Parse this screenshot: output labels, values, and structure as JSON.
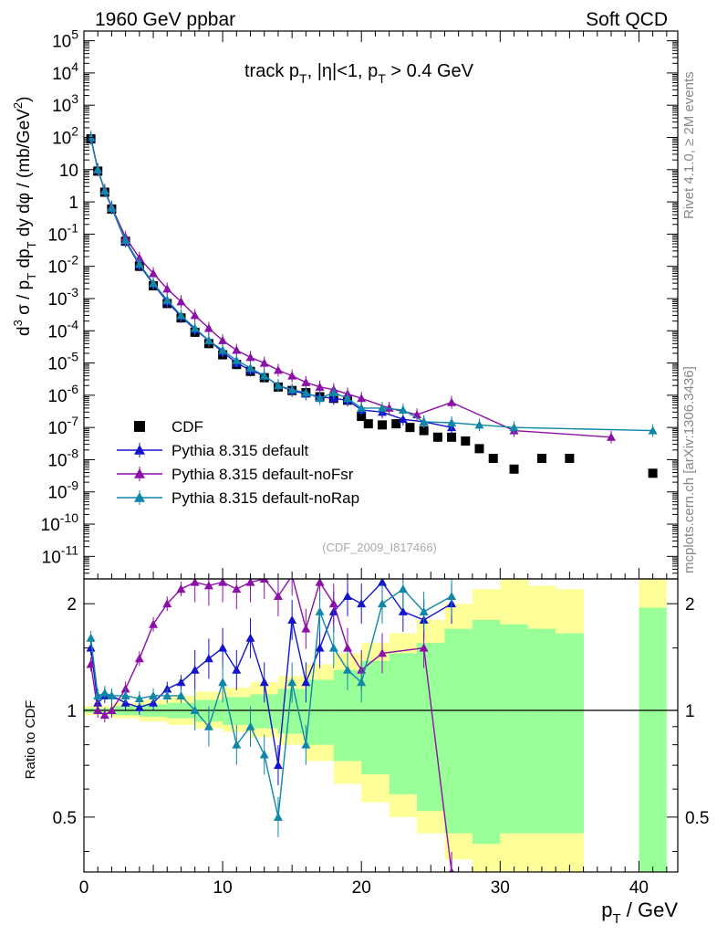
{
  "header": {
    "left": "1960 GeV ppbar",
    "right": "Soft QCD"
  },
  "side_labels": {
    "rivet": "Rivet 4.1.0, ≥ 2M events",
    "mcplots": "mcplots.cern.ch [arXiv:1306.3436]"
  },
  "colors": {
    "cdf": "#000000",
    "default": "#1414cc",
    "nofsr": "#8b0fa8",
    "norap": "#0f87a8",
    "band_outer": "#ffff99",
    "band_inner": "#99ff99"
  },
  "chart_data": [
    {
      "type": "scatter",
      "panel": "main",
      "title": "track pT, |η|<1, pT > 0.4 GeV",
      "title_parts": {
        "a": "track p",
        "a_sub": "T",
        "b": ", |η|<1, p",
        "b_sub": "T",
        "c": " > 0.4 GeV"
      },
      "ylabel": "d³σ / pT dpT dy dφ / (mb/GeV²)",
      "ylabel_parts": {
        "p1": "d",
        "p1_sup": "3",
        "p2": " σ / p",
        "p2_sub": "T",
        "p3": " dp",
        "p3_sub": "T",
        "p4": " dy dφ / (mb/GeV",
        "p4_sup": "2",
        "p5": ")"
      },
      "yscale": "log",
      "ylim": [
        2e-12,
        200000.0
      ],
      "xlim": [
        0,
        42.8
      ],
      "y_ticks": [
        {
          "b": "10",
          "e": "5",
          "v": 100000.0
        },
        {
          "b": "10",
          "e": "4",
          "v": 10000.0
        },
        {
          "b": "10",
          "e": "3",
          "v": 1000.0
        },
        {
          "b": "10",
          "e": "2",
          "v": 100.0
        },
        {
          "b": "10",
          "e": "",
          "v": 10
        },
        {
          "b": "1",
          "e": "",
          "v": 1
        },
        {
          "b": "10",
          "e": "-1",
          "v": 0.1
        },
        {
          "b": "10",
          "e": "-2",
          "v": 0.01
        },
        {
          "b": "10",
          "e": "-3",
          "v": 0.001
        },
        {
          "b": "10",
          "e": "-4",
          "v": 0.0001
        },
        {
          "b": "10",
          "e": "-5",
          "v": 1e-05
        },
        {
          "b": "10",
          "e": "-6",
          "v": 1e-06
        },
        {
          "b": "10",
          "e": "-7",
          "v": 1e-07
        },
        {
          "b": "10",
          "e": "-8",
          "v": 1e-08
        },
        {
          "b": "10",
          "e": "-9",
          "v": 1e-09
        },
        {
          "b": "10",
          "e": "-10",
          "v": 1e-10
        },
        {
          "b": "10",
          "e": "-11",
          "v": 1e-11
        }
      ],
      "legend": [
        {
          "label": "CDF",
          "marker": "square",
          "color": "#000000"
        },
        {
          "label": "Pythia 8.315 default",
          "marker": "triangle",
          "color": "#1414cc"
        },
        {
          "label": "Pythia 8.315 default-noFsr",
          "marker": "triangle",
          "color": "#8b0fa8"
        },
        {
          "label": "Pythia 8.315 default-noRap",
          "marker": "triangle",
          "color": "#0f87a8"
        }
      ],
      "watermark": "(CDF_2009_I817466)",
      "series": [
        {
          "name": "CDF",
          "color": "#000000",
          "x": [
            0.5,
            1,
            1.5,
            2,
            3,
            4,
            5,
            6,
            7,
            8,
            9,
            10,
            11,
            12,
            13,
            14,
            15,
            16,
            17,
            18,
            19,
            20,
            20.5,
            21.5,
            22.5,
            23.5,
            24.5,
            25.5,
            26.5,
            27.5,
            28.5,
            29.5,
            31,
            33,
            35,
            41
          ],
          "y": [
            90,
            9,
            2,
            0.6,
            0.06,
            0.01,
            0.0025,
            0.0007,
            0.00025,
            9e-05,
            4e-05,
            1.8e-05,
            9e-06,
            5.5e-06,
            3.5e-06,
            1.8e-06,
            1.4e-06,
            1.2e-06,
            9e-07,
            8e-07,
            7e-07,
            2.2e-07,
            1.3e-07,
            1.2e-07,
            1.3e-07,
            1e-07,
            8e-08,
            5e-08,
            5e-08,
            3.8e-08,
            2.2e-08,
            1.1e-08,
            5.1e-09,
            1.1e-08,
            1.1e-08,
            3.8e-09
          ]
        },
        {
          "name": "Pythia 8.315 default",
          "color": "#1414cc",
          "x": [
            0.5,
            1,
            1.5,
            2,
            3,
            4,
            5,
            6,
            7,
            8,
            9,
            10,
            11,
            12,
            13,
            14,
            15,
            16,
            17,
            18,
            19,
            20,
            21.5,
            23,
            24.5,
            26.5
          ],
          "y": [
            95,
            10,
            2.2,
            0.65,
            0.06,
            0.011,
            0.0028,
            0.0008,
            0.00028,
            0.00011,
            5e-05,
            2.2e-05,
            1e-05,
            6e-06,
            4e-06,
            2e-06,
            1.4e-06,
            1.1e-06,
            9e-07,
            8e-07,
            7e-07,
            3.5e-07,
            3e-07,
            1.8e-07,
            1.5e-07,
            1e-07
          ]
        },
        {
          "name": "Pythia 8.315 default-noFsr",
          "color": "#8b0fa8",
          "x": [
            0.5,
            1,
            1.5,
            2,
            3,
            4,
            5,
            6,
            7,
            8,
            9,
            10,
            11,
            12,
            13,
            14,
            15,
            16,
            17,
            18,
            19,
            20,
            22,
            24,
            26.5,
            31,
            38
          ],
          "y": [
            100,
            10,
            2.3,
            0.7,
            0.08,
            0.018,
            0.006,
            0.002,
            0.0008,
            0.0003,
            0.00012,
            5e-05,
            2.5e-05,
            1.5e-05,
            1e-05,
            6e-06,
            4e-06,
            2.5e-06,
            1.8e-06,
            1.5e-06,
            1.1e-06,
            8e-07,
            4e-07,
            2.5e-07,
            6e-07,
            8e-08,
            5e-08
          ]
        },
        {
          "name": "Pythia 8.315 default-noRap",
          "color": "#0f87a8",
          "x": [
            0.5,
            1,
            1.5,
            2,
            3,
            4,
            5,
            6,
            7,
            8,
            9,
            10,
            11,
            12,
            13,
            14,
            15,
            16,
            17,
            18,
            19,
            20,
            21.5,
            23,
            24.5,
            26.5,
            28.5,
            31,
            41
          ],
          "y": [
            100,
            10,
            2.2,
            0.65,
            0.065,
            0.012,
            0.003,
            0.0009,
            0.0003,
            0.00012,
            5e-05,
            2.5e-05,
            1.2e-05,
            7e-06,
            4e-06,
            2e-06,
            1.5e-06,
            1.2e-06,
            8e-07,
            1.2e-06,
            8e-07,
            4e-07,
            4e-07,
            3.5e-07,
            1.5e-07,
            1.4e-07,
            1.2e-07,
            1e-07,
            8e-08
          ]
        }
      ]
    },
    {
      "type": "line",
      "panel": "ratio",
      "ylabel": "Ratio to CDF",
      "xlabel": "pT / GeV",
      "xlabel_parts": {
        "a": "p",
        "a_sub": "T",
        "b": " / GeV"
      },
      "yscale": "log",
      "ylim": [
        0.35,
        2.35
      ],
      "xlim": [
        0,
        42.8
      ],
      "x_ticks": [
        0,
        10,
        20,
        30,
        40
      ],
      "y_ticks": [
        0.5,
        1,
        2
      ],
      "uncertainty_band": {
        "edges": [
          0,
          2,
          4,
          6,
          8,
          10,
          12,
          14,
          16,
          18,
          20,
          22,
          24,
          26,
          28,
          30,
          32,
          34,
          36
        ],
        "outer_lo": [
          0.97,
          0.95,
          0.93,
          0.91,
          0.89,
          0.87,
          0.84,
          0.8,
          0.72,
          0.62,
          0.55,
          0.5,
          0.45,
          0.38,
          0.35,
          0.35,
          0.35,
          0.35
        ],
        "outer_hi": [
          1.03,
          1.05,
          1.07,
          1.1,
          1.13,
          1.16,
          1.2,
          1.25,
          1.35,
          1.45,
          1.55,
          1.65,
          1.8,
          2,
          2.2,
          2.35,
          2.25,
          2.2
        ],
        "inner_lo": [
          0.985,
          0.97,
          0.96,
          0.95,
          0.93,
          0.91,
          0.89,
          0.86,
          0.8,
          0.72,
          0.66,
          0.58,
          0.52,
          0.45,
          0.42,
          0.45,
          0.45,
          0.45
        ],
        "inner_hi": [
          1.015,
          1.03,
          1.04,
          1.05,
          1.07,
          1.09,
          1.11,
          1.15,
          1.22,
          1.3,
          1.38,
          1.45,
          1.55,
          1.7,
          1.8,
          1.75,
          1.7,
          1.65
        ],
        "last_edges": [
          40,
          42
        ],
        "last_outer": [
          0.35,
          2.35
        ],
        "last_inner": [
          0.35,
          1.95
        ]
      },
      "series": [
        {
          "name": "Pythia 8.315 default",
          "color": "#1414cc",
          "x": [
            0.5,
            1,
            1.5,
            2,
            3,
            4,
            5,
            6,
            7,
            8,
            9,
            10,
            11,
            12,
            13,
            14,
            15,
            16,
            17,
            18,
            19,
            20,
            21.5,
            23,
            24.5,
            26.5
          ],
          "y": [
            1.5,
            1.05,
            1.1,
            1.1,
            1.05,
            1.02,
            1.05,
            1.15,
            1.2,
            1.3,
            1.4,
            1.5,
            1.3,
            1.6,
            1.2,
            0.7,
            1.8,
            1.2,
            1.5,
            1.9,
            2.1,
            2.0,
            2.3,
            1.9,
            1.8,
            2.0
          ]
        },
        {
          "name": "Pythia 8.315 default-noFsr",
          "color": "#8b0fa8",
          "x": [
            0.5,
            1,
            1.5,
            2,
            3,
            4,
            5,
            6,
            7,
            8,
            9,
            10,
            11,
            12,
            13,
            14,
            15,
            16,
            17,
            18,
            19,
            20,
            21.5,
            24.5,
            26.5
          ],
          "y": [
            1.35,
            1.0,
            0.97,
            1.0,
            1.15,
            1.4,
            1.75,
            2.0,
            2.2,
            2.3,
            2.25,
            2.3,
            2.2,
            2.3,
            2.35,
            2.1,
            2.4,
            1.7,
            2.3,
            2.0,
            1.5,
            1.3,
            1.45,
            1.5,
            0.35
          ]
        },
        {
          "name": "Pythia 8.315 default-noRap",
          "color": "#0f87a8",
          "x": [
            0.5,
            1,
            1.5,
            2,
            3,
            4,
            5,
            6,
            7,
            8,
            9,
            10,
            11,
            12,
            13,
            14,
            15,
            16,
            17,
            18,
            19,
            20,
            21.5,
            23,
            24.5,
            26.5
          ],
          "y": [
            1.6,
            1.1,
            1.12,
            1.1,
            1.1,
            1.08,
            1.1,
            1.1,
            1.1,
            1.0,
            0.9,
            1.2,
            0.8,
            0.9,
            0.75,
            0.5,
            1.2,
            0.8,
            1.9,
            1.5,
            1.3,
            1.2,
            2.0,
            2.2,
            1.9,
            2.1
          ]
        }
      ]
    }
  ]
}
